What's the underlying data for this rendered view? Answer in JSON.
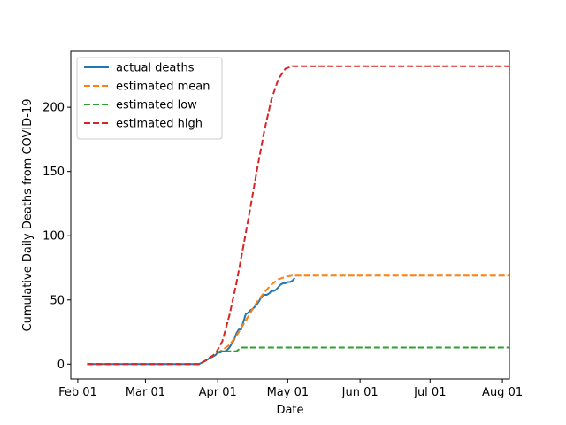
{
  "chart_data": {
    "type": "line",
    "title": "",
    "xlabel": "Date",
    "ylabel": "Cumulative Daily Deaths from COVID-19",
    "x_tick_labels": [
      "Feb 01",
      "Mar 01",
      "Apr 01",
      "May 01",
      "Jun 01",
      "Jul 01",
      "Aug 01"
    ],
    "x_ticks": [
      "2020-02-01",
      "2020-03-01",
      "2020-04-01",
      "2020-05-01",
      "2020-06-01",
      "2020-07-01",
      "2020-08-01"
    ],
    "y_tick_labels": [
      "0",
      "50",
      "100",
      "150",
      "200"
    ],
    "y_ticks": [
      0,
      50,
      100,
      150,
      200
    ],
    "xlim": [
      "2020-01-29",
      "2020-08-04"
    ],
    "ylim": [
      -11.5,
      243.5
    ],
    "grid": false,
    "legend_position": "upper left",
    "series": [
      {
        "name": "actual deaths",
        "color": "#1f77b4",
        "dash": "solid",
        "points": [
          [
            "2020-02-05",
            0
          ],
          [
            "2020-03-24",
            0
          ],
          [
            "2020-03-25",
            1
          ],
          [
            "2020-03-26",
            2
          ],
          [
            "2020-03-27",
            3
          ],
          [
            "2020-03-28",
            4
          ],
          [
            "2020-03-29",
            5
          ],
          [
            "2020-03-30",
            6
          ],
          [
            "2020-03-31",
            7
          ],
          [
            "2020-04-01",
            9
          ],
          [
            "2020-04-02",
            9
          ],
          [
            "2020-04-03",
            10
          ],
          [
            "2020-04-04",
            10
          ],
          [
            "2020-04-05",
            11
          ],
          [
            "2020-04-06",
            13
          ],
          [
            "2020-04-07",
            16
          ],
          [
            "2020-04-08",
            19
          ],
          [
            "2020-04-09",
            24
          ],
          [
            "2020-04-10",
            27
          ],
          [
            "2020-04-11",
            27
          ],
          [
            "2020-04-12",
            33
          ],
          [
            "2020-04-13",
            39
          ],
          [
            "2020-04-14",
            40
          ],
          [
            "2020-04-15",
            42
          ],
          [
            "2020-04-16",
            43
          ],
          [
            "2020-04-17",
            45
          ],
          [
            "2020-04-18",
            47
          ],
          [
            "2020-04-19",
            50
          ],
          [
            "2020-04-20",
            53
          ],
          [
            "2020-04-21",
            54
          ],
          [
            "2020-04-22",
            54
          ],
          [
            "2020-04-23",
            55
          ],
          [
            "2020-04-24",
            57
          ],
          [
            "2020-04-25",
            57
          ],
          [
            "2020-04-26",
            58
          ],
          [
            "2020-04-27",
            60
          ],
          [
            "2020-04-28",
            62
          ],
          [
            "2020-04-29",
            63
          ],
          [
            "2020-04-30",
            63
          ],
          [
            "2020-05-01",
            64
          ],
          [
            "2020-05-02",
            64
          ],
          [
            "2020-05-03",
            65
          ],
          [
            "2020-05-04",
            67
          ]
        ]
      },
      {
        "name": "estimated mean",
        "color": "#ff7f0e",
        "dash": "dashed",
        "points": [
          [
            "2020-02-05",
            0
          ],
          [
            "2020-03-24",
            0
          ],
          [
            "2020-03-27",
            3
          ],
          [
            "2020-03-31",
            8
          ],
          [
            "2020-04-03",
            11
          ],
          [
            "2020-04-06",
            15
          ],
          [
            "2020-04-09",
            22
          ],
          [
            "2020-04-12",
            31
          ],
          [
            "2020-04-15",
            40
          ],
          [
            "2020-04-18",
            49
          ],
          [
            "2020-04-21",
            56
          ],
          [
            "2020-04-24",
            62
          ],
          [
            "2020-04-27",
            66
          ],
          [
            "2020-04-30",
            68
          ],
          [
            "2020-05-03",
            69
          ],
          [
            "2020-08-04",
            69
          ]
        ]
      },
      {
        "name": "estimated low",
        "color": "#2ca02c",
        "dash": "dashed",
        "points": [
          [
            "2020-02-05",
            0
          ],
          [
            "2020-03-24",
            0
          ],
          [
            "2020-03-27",
            3
          ],
          [
            "2020-03-31",
            8
          ],
          [
            "2020-04-01",
            9
          ],
          [
            "2020-04-02",
            10
          ],
          [
            "2020-04-09",
            10
          ],
          [
            "2020-04-11",
            13
          ],
          [
            "2020-08-04",
            13
          ]
        ]
      },
      {
        "name": "estimated high",
        "color": "#d62728",
        "dash": "dashed",
        "points": [
          [
            "2020-02-05",
            0
          ],
          [
            "2020-03-24",
            0
          ],
          [
            "2020-03-27",
            3
          ],
          [
            "2020-03-31",
            8
          ],
          [
            "2020-04-03",
            18
          ],
          [
            "2020-04-06",
            38
          ],
          [
            "2020-04-09",
            63
          ],
          [
            "2020-04-12",
            92
          ],
          [
            "2020-04-15",
            122
          ],
          [
            "2020-04-18",
            153
          ],
          [
            "2020-04-21",
            182
          ],
          [
            "2020-04-24",
            206
          ],
          [
            "2020-04-27",
            222
          ],
          [
            "2020-04-30",
            230
          ],
          [
            "2020-05-03",
            232
          ],
          [
            "2020-08-04",
            232
          ]
        ]
      }
    ]
  }
}
